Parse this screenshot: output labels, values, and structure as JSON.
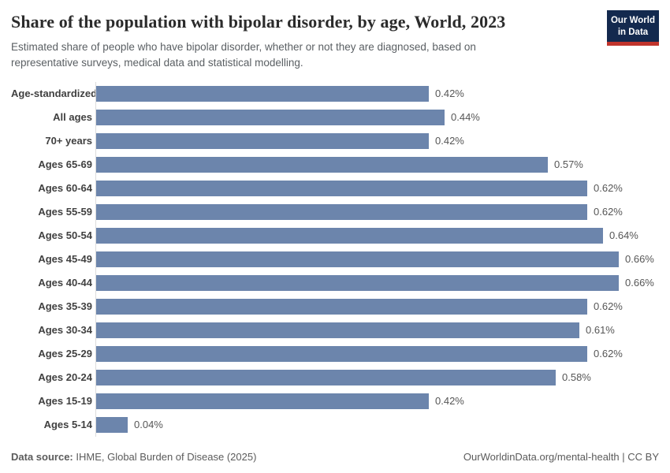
{
  "header": {
    "title": "Share of the population with bipolar disorder, by age, World, 2023",
    "subtitle": "Estimated share of people who have bipolar disorder, whether or not they are diagnosed, based on representative surveys, medical data and statistical modelling.",
    "logo": {
      "line1": "Our World",
      "line2": "in Data",
      "bg_color": "#13294e",
      "accent_color": "#c0342c"
    }
  },
  "chart_data": {
    "type": "bar",
    "orientation": "horizontal",
    "title": "Share of the population with bipolar disorder, by age, World, 2023",
    "xlabel": "",
    "ylabel": "",
    "unit": "%",
    "grid": false,
    "legend": "none",
    "xlim": [
      0,
      0.66
    ],
    "bar_color": "#6c85ac",
    "categories": [
      "Age-standardized",
      "All ages",
      "70+ years",
      "Ages 65-69",
      "Ages 60-64",
      "Ages 55-59",
      "Ages 50-54",
      "Ages 45-49",
      "Ages 40-44",
      "Ages 35-39",
      "Ages 30-34",
      "Ages 25-29",
      "Ages 20-24",
      "Ages 15-19",
      "Ages 5-14"
    ],
    "values": [
      0.42,
      0.44,
      0.42,
      0.57,
      0.62,
      0.62,
      0.64,
      0.66,
      0.66,
      0.62,
      0.61,
      0.62,
      0.58,
      0.42,
      0.04
    ],
    "value_labels": [
      "0.42%",
      "0.44%",
      "0.42%",
      "0.57%",
      "0.62%",
      "0.62%",
      "0.64%",
      "0.66%",
      "0.66%",
      "0.62%",
      "0.61%",
      "0.62%",
      "0.58%",
      "0.42%",
      "0.04%"
    ]
  },
  "footer": {
    "source_label": "Data source:",
    "source_text": " IHME, Global Burden of Disease (2025)",
    "credit": "OurWorldinData.org/mental-health | CC BY"
  }
}
